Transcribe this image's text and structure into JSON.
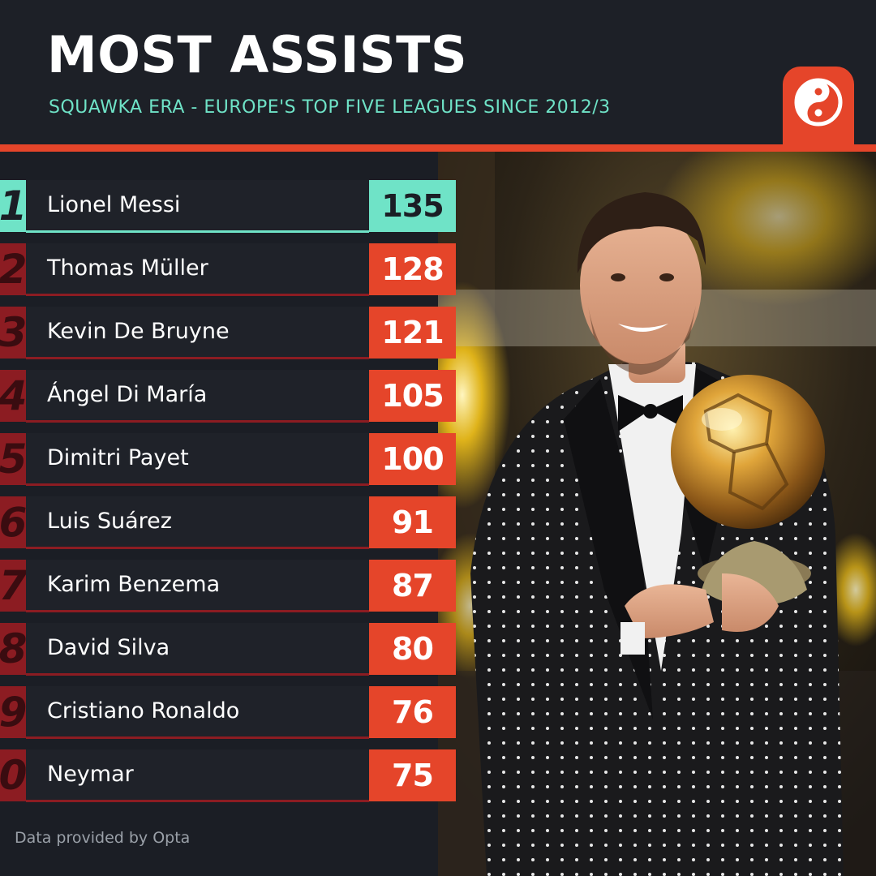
{
  "header": {
    "title": "MOST ASSISTS",
    "subtitle": "SQUAWKA ERA - EUROPE'S TOP FIVE LEAGUES SINCE 2012/3"
  },
  "logo": {
    "icon": "squawka-logo-icon"
  },
  "colors": {
    "accent": "#e5452a",
    "highlight": "#6fe3c7",
    "rank_dark": "#8c1c22",
    "panel": "#1f2229"
  },
  "chart_data": {
    "type": "table",
    "title": "MOST ASSISTS",
    "subtitle": "SQUAWKA ERA - EUROPE'S TOP FIVE LEAGUES SINCE 2012/3",
    "columns": [
      "rank",
      "player",
      "assists"
    ],
    "rows": [
      {
        "rank": "1",
        "player": "Lionel Messi",
        "assists": 135
      },
      {
        "rank": "2",
        "player": "Thomas Müller",
        "assists": 128
      },
      {
        "rank": "3",
        "player": "Kevin De Bruyne",
        "assists": 121
      },
      {
        "rank": "4",
        "player": "Ángel Di María",
        "assists": 105
      },
      {
        "rank": "5",
        "player": "Dimitri Payet",
        "assists": 100
      },
      {
        "rank": "6",
        "player": "Luis Suárez",
        "assists": 91
      },
      {
        "rank": "7",
        "player": "Karim Benzema",
        "assists": 87
      },
      {
        "rank": "8",
        "player": "David Silva",
        "assists": 80
      },
      {
        "rank": "9",
        "player": "Cristiano Ronaldo",
        "assists": 76
      },
      {
        "rank": "0",
        "player": "Neymar",
        "assists": 75
      }
    ]
  },
  "footer": {
    "source": "Data provided by Opta"
  }
}
